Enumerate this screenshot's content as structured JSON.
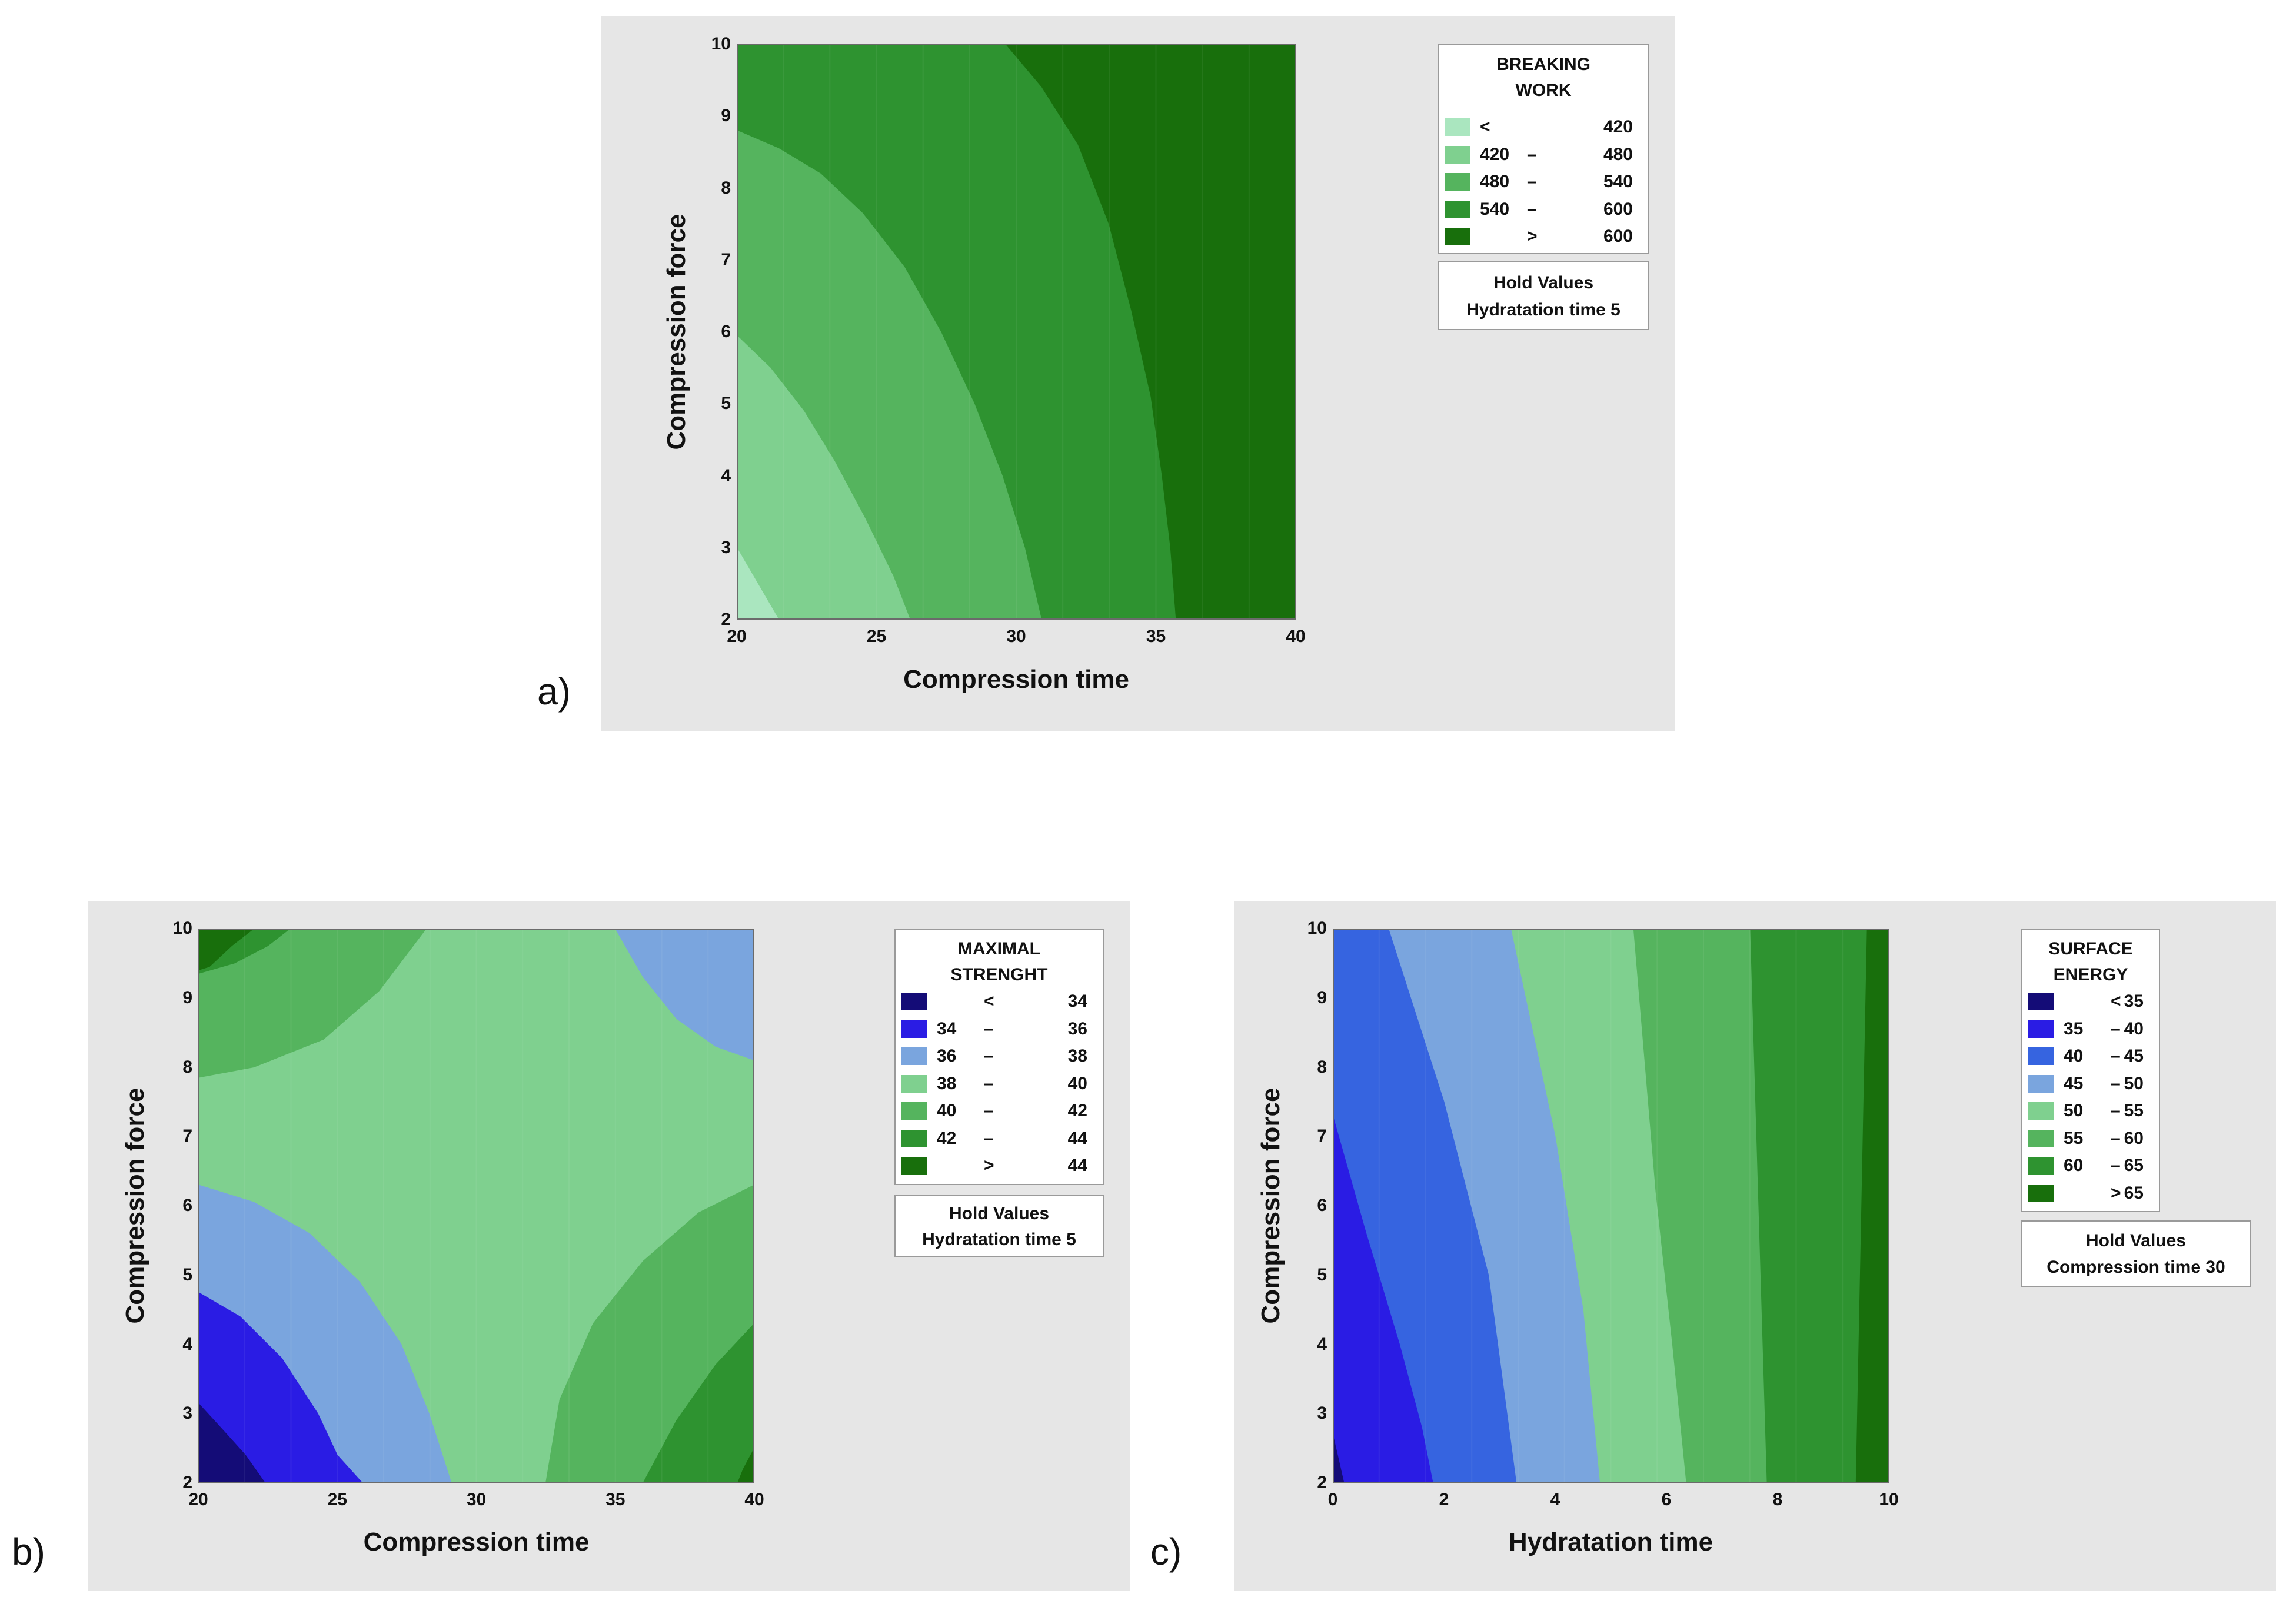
{
  "panel_labels": {
    "a": "a)",
    "b": "b)",
    "c": "c)"
  },
  "colors": {
    "panel_background": "#e6e6e6",
    "greens": [
      "#aae6bf",
      "#7fd08f",
      "#55b45e",
      "#2e9330",
      "#237d17",
      "#186f0c"
    ],
    "blues": [
      "#140c77",
      "#2a1ce4",
      "#3664e0",
      "#7aa5de"
    ]
  },
  "chart_data": [
    {
      "id": "a",
      "type": "contour",
      "title": "",
      "xlabel": "Compression time",
      "ylabel": "Compression force",
      "xlim": [
        20,
        40
      ],
      "ylim": [
        2,
        10
      ],
      "xticks": [
        "20",
        "25",
        "30",
        "35",
        "40"
      ],
      "yticks": [
        "2",
        "3",
        "4",
        "5",
        "6",
        "7",
        "8",
        "9",
        "10"
      ],
      "legend": {
        "title": [
          "BREAKING",
          "WORK"
        ],
        "levels": [
          {
            "lo": "<",
            "dash": "",
            "hi": "420",
            "color": "#aae6bf"
          },
          {
            "lo": "420",
            "dash": "–",
            "hi": "480",
            "color": "#7fd08f"
          },
          {
            "lo": "480",
            "dash": "–",
            "hi": "540",
            "color": "#55b45e"
          },
          {
            "lo": "540",
            "dash": "–",
            "hi": "600",
            "color": "#2e9330"
          },
          {
            "lo": "",
            "dash": ">",
            "hi": "600",
            "color": "#186f0c"
          }
        ]
      },
      "hold_values": {
        "title": "Hold Values",
        "line": "Hydratation time  5"
      },
      "background": "#186f0c",
      "regions": [
        {
          "level": "540 – 600",
          "color": "#2e9330",
          "points": [
            [
              20,
              10
            ],
            [
              29.6,
              10
            ],
            [
              30.9,
              9.4
            ],
            [
              32.2,
              8.6
            ],
            [
              33.3,
              7.5
            ],
            [
              34.1,
              6.3
            ],
            [
              34.8,
              5.1
            ],
            [
              35.2,
              4.0
            ],
            [
              35.5,
              3.0
            ],
            [
              35.7,
              2
            ],
            [
              20,
              2
            ]
          ]
        },
        {
          "level": "480 – 540",
          "color": "#55b45e",
          "points": [
            [
              20,
              8.8
            ],
            [
              21.5,
              8.55
            ],
            [
              23,
              8.2
            ],
            [
              24.5,
              7.65
            ],
            [
              26,
              6.9
            ],
            [
              27.3,
              6.0
            ],
            [
              28.5,
              5.0
            ],
            [
              29.5,
              4.0
            ],
            [
              30.3,
              3.0
            ],
            [
              30.9,
              2
            ],
            [
              20,
              2
            ]
          ]
        },
        {
          "level": "420 – 480",
          "color": "#7fd08f",
          "points": [
            [
              20,
              5.95
            ],
            [
              21.2,
              5.5
            ],
            [
              22.4,
              4.9
            ],
            [
              23.5,
              4.2
            ],
            [
              24.6,
              3.4
            ],
            [
              25.6,
              2.6
            ],
            [
              26.2,
              2
            ],
            [
              20,
              2
            ]
          ]
        },
        {
          "level": "< 420",
          "color": "#aae6bf",
          "points": [
            [
              20,
              3.0
            ],
            [
              20.6,
              2.6
            ],
            [
              21.2,
              2.2
            ],
            [
              21.5,
              2
            ],
            [
              20,
              2
            ]
          ]
        }
      ]
    },
    {
      "id": "b",
      "type": "contour",
      "title": "",
      "xlabel": "Compression time",
      "ylabel": "Compression force",
      "xlim": [
        20,
        40
      ],
      "ylim": [
        2,
        10
      ],
      "xticks": [
        "20",
        "25",
        "30",
        "35",
        "40"
      ],
      "yticks": [
        "2",
        "3",
        "4",
        "5",
        "6",
        "7",
        "8",
        "9",
        "10"
      ],
      "legend": {
        "title": [
          "MAXIMAL",
          "STRENGHT"
        ],
        "levels": [
          {
            "lo": "",
            "dash": "<",
            "hi": "34",
            "color": "#140c77"
          },
          {
            "lo": "34",
            "dash": "–",
            "hi": "36",
            "color": "#2a1ce4"
          },
          {
            "lo": "36",
            "dash": "–",
            "hi": "38",
            "color": "#7aa5de"
          },
          {
            "lo": "38",
            "dash": "–",
            "hi": "40",
            "color": "#7fd08f"
          },
          {
            "lo": "40",
            "dash": "–",
            "hi": "42",
            "color": "#55b45e"
          },
          {
            "lo": "42",
            "dash": "–",
            "hi": "44",
            "color": "#2e9330"
          },
          {
            "lo": "",
            "dash": ">",
            "hi": "44",
            "color": "#186f0c"
          }
        ]
      },
      "hold_values": {
        "title": "Hold Values",
        "line": "Hydratation time  5"
      },
      "background": "#7fd08f",
      "regions": [
        {
          "level": "40 – 42",
          "color": "#55b45e",
          "points": [
            [
              20,
              10
            ],
            [
              28.2,
              10
            ],
            [
              26.5,
              9.1
            ],
            [
              24.5,
              8.4
            ],
            [
              22,
              8.0
            ],
            [
              20,
              7.85
            ]
          ]
        },
        {
          "level": "42 – 44",
          "color": "#2e9330",
          "points": [
            [
              20,
              10
            ],
            [
              23.3,
              10
            ],
            [
              22.5,
              9.75
            ],
            [
              21.3,
              9.5
            ],
            [
              20,
              9.35
            ]
          ]
        },
        {
          "level": "> 44",
          "color": "#186f0c",
          "points": [
            [
              20,
              10
            ],
            [
              22,
              10
            ],
            [
              21.2,
              9.75
            ],
            [
              20.4,
              9.45
            ],
            [
              20,
              9.4
            ]
          ]
        },
        {
          "level": "36 – 38",
          "color": "#7aa5de",
          "points": [
            [
              35,
              10
            ],
            [
              40,
              10
            ],
            [
              40,
              8.1
            ],
            [
              38.6,
              8.3
            ],
            [
              37.2,
              8.7
            ],
            [
              36,
              9.3
            ]
          ]
        },
        {
          "level": "36 – 38",
          "color": "#7aa5de",
          "points": [
            [
              20,
              6.3
            ],
            [
              22,
              6.05
            ],
            [
              24,
              5.6
            ],
            [
              25.8,
              4.9
            ],
            [
              27.3,
              4.0
            ],
            [
              28.3,
              3.0
            ],
            [
              29.1,
              2
            ],
            [
              20,
              2
            ]
          ]
        },
        {
          "level": "34 – 36",
          "color": "#2a1ce4",
          "points": [
            [
              20,
              4.75
            ],
            [
              21.5,
              4.4
            ],
            [
              23,
              3.8
            ],
            [
              24.3,
              3.0
            ],
            [
              25,
              2.4
            ],
            [
              25.9,
              2
            ],
            [
              20,
              2
            ]
          ]
        },
        {
          "level": "< 34",
          "color": "#140c77",
          "points": [
            [
              20,
              3.15
            ],
            [
              20.8,
              2.8
            ],
            [
              21.7,
              2.4
            ],
            [
              22.4,
              2
            ],
            [
              20,
              2
            ]
          ]
        },
        {
          "level": "40 – 42",
          "color": "#55b45e",
          "points": [
            [
              40,
              6.3
            ],
            [
              38,
              5.9
            ],
            [
              36,
              5.2
            ],
            [
              34.2,
              4.3
            ],
            [
              33,
              3.2
            ],
            [
              32.5,
              2
            ],
            [
              40,
              2
            ]
          ]
        },
        {
          "level": "42 – 44",
          "color": "#2e9330",
          "points": [
            [
              40,
              4.3
            ],
            [
              38.6,
              3.7
            ],
            [
              37.2,
              2.9
            ],
            [
              36,
              2
            ],
            [
              40,
              2
            ]
          ]
        },
        {
          "level": "> 44",
          "color": "#186f0c",
          "points": [
            [
              40,
              2.5
            ],
            [
              39.6,
              2.2
            ],
            [
              39.4,
              2
            ],
            [
              40,
              2
            ]
          ]
        }
      ]
    },
    {
      "id": "c",
      "type": "contour",
      "title": "",
      "xlabel": "Hydratation time",
      "ylabel": "Compression force",
      "xlim": [
        0,
        10
      ],
      "ylim": [
        2,
        10
      ],
      "xticks": [
        "0",
        "2",
        "4",
        "6",
        "8",
        "10"
      ],
      "yticks": [
        "2",
        "3",
        "4",
        "5",
        "6",
        "7",
        "8",
        "9",
        "10"
      ],
      "legend": {
        "title": [
          "SURFACE",
          "ENERGY"
        ],
        "levels": [
          {
            "lo": "",
            "dash": "<",
            "hi": "35",
            "color": "#140c77"
          },
          {
            "lo": "35",
            "dash": "–",
            "hi": "40",
            "color": "#2a1ce4"
          },
          {
            "lo": "40",
            "dash": "–",
            "hi": "45",
            "color": "#3664e0"
          },
          {
            "lo": "45",
            "dash": "–",
            "hi": "50",
            "color": "#7aa5de"
          },
          {
            "lo": "50",
            "dash": "–",
            "hi": "55",
            "color": "#7fd08f"
          },
          {
            "lo": "55",
            "dash": "–",
            "hi": "60",
            "color": "#55b45e"
          },
          {
            "lo": "60",
            "dash": "–",
            "hi": "65",
            "color": "#2e9330"
          },
          {
            "lo": "",
            "dash": ">",
            "hi": "65",
            "color": "#186f0c"
          }
        ]
      },
      "hold_values": {
        "title": "Hold Values",
        "line": "Compression time  30"
      },
      "background": "#186f0c",
      "regions": [
        {
          "level": "60 – 65",
          "color": "#2e9330",
          "points": [
            [
              0,
              10
            ],
            [
              9.6,
              10
            ],
            [
              9.5,
              6
            ],
            [
              9.4,
              2
            ],
            [
              0,
              2
            ]
          ]
        },
        {
          "level": "55 – 60",
          "color": "#55b45e",
          "points": [
            [
              0,
              10
            ],
            [
              7.5,
              10
            ],
            [
              7.65,
              6
            ],
            [
              7.8,
              2
            ],
            [
              0,
              2
            ]
          ]
        },
        {
          "level": "50 – 55",
          "color": "#7fd08f",
          "points": [
            [
              0,
              10
            ],
            [
              5.4,
              10
            ],
            [
              5.8,
              6.2
            ],
            [
              6.1,
              4
            ],
            [
              6.35,
              2
            ],
            [
              0,
              2
            ]
          ]
        },
        {
          "level": "45 – 50",
          "color": "#7aa5de",
          "points": [
            [
              0,
              10
            ],
            [
              3.2,
              10
            ],
            [
              4.0,
              7
            ],
            [
              4.5,
              4.5
            ],
            [
              4.8,
              2
            ],
            [
              0,
              2
            ]
          ]
        },
        {
          "level": "40 – 45",
          "color": "#3664e0",
          "points": [
            [
              0,
              10
            ],
            [
              1.0,
              10
            ],
            [
              2.0,
              7.5
            ],
            [
              2.8,
              5
            ],
            [
              3.3,
              2
            ],
            [
              0,
              2
            ]
          ]
        },
        {
          "level": "35 – 40",
          "color": "#2a1ce4",
          "points": [
            [
              0,
              7.3
            ],
            [
              0.6,
              5.6
            ],
            [
              1.2,
              4.0
            ],
            [
              1.6,
              2.8
            ],
            [
              1.8,
              2
            ],
            [
              0,
              2
            ]
          ]
        },
        {
          "level": "< 35",
          "color": "#140c77",
          "points": [
            [
              0,
              2.7
            ],
            [
              0.1,
              2.35
            ],
            [
              0.2,
              2
            ],
            [
              0,
              2
            ]
          ]
        }
      ]
    }
  ]
}
